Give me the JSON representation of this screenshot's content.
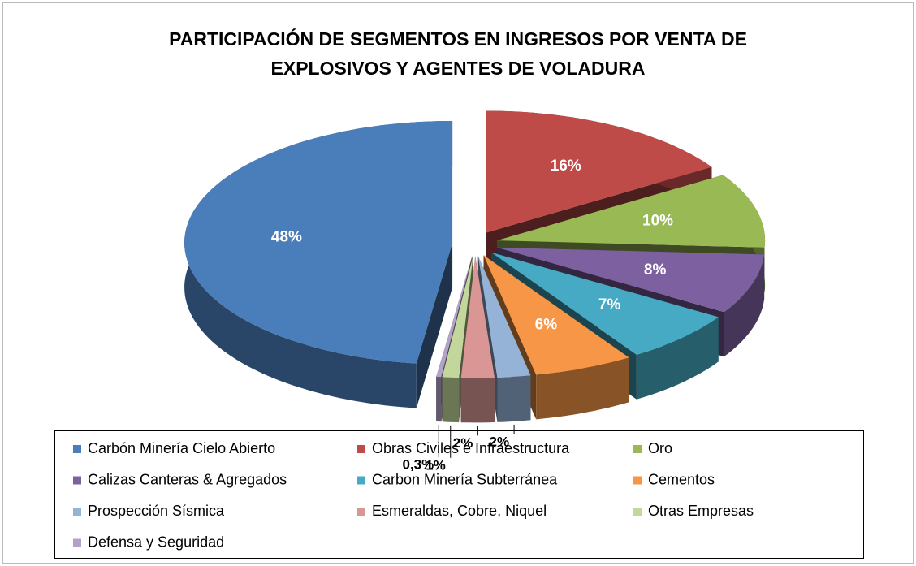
{
  "chart_data": {
    "type": "pie",
    "title": "PARTICIPACIÓN DE SEGMENTOS EN INGRESOS POR VENTA DE EXPLOSIVOS Y AGENTES DE VOLADURA",
    "categories": [
      "Carbón Minería Cielo Abierto",
      "Obras Civiles e Infraestructura",
      "Oro",
      "Calizas Canteras & Agregados",
      "Carbon Minería Subterránea",
      "Cementos",
      "Prospección Sísmica",
      "Esmeraldas, Cobre, Niquel",
      "Otras Empresas",
      "Defensa y Seguridad"
    ],
    "values": [
      48,
      16,
      10,
      8,
      7,
      6,
      2,
      2,
      1,
      0.3
    ],
    "value_labels": [
      "48%",
      "16%",
      "10%",
      "8%",
      "7%",
      "6%",
      "2%",
      "2%",
      "1%",
      "0,3%"
    ],
    "colors": [
      "#4a7ebb",
      "#be4b48",
      "#98b954",
      "#7d60a0",
      "#46aac5",
      "#f79646",
      "#95b3d7",
      "#d99694",
      "#c3d69b",
      "#b3a2c7"
    ],
    "legend": "bottom"
  }
}
